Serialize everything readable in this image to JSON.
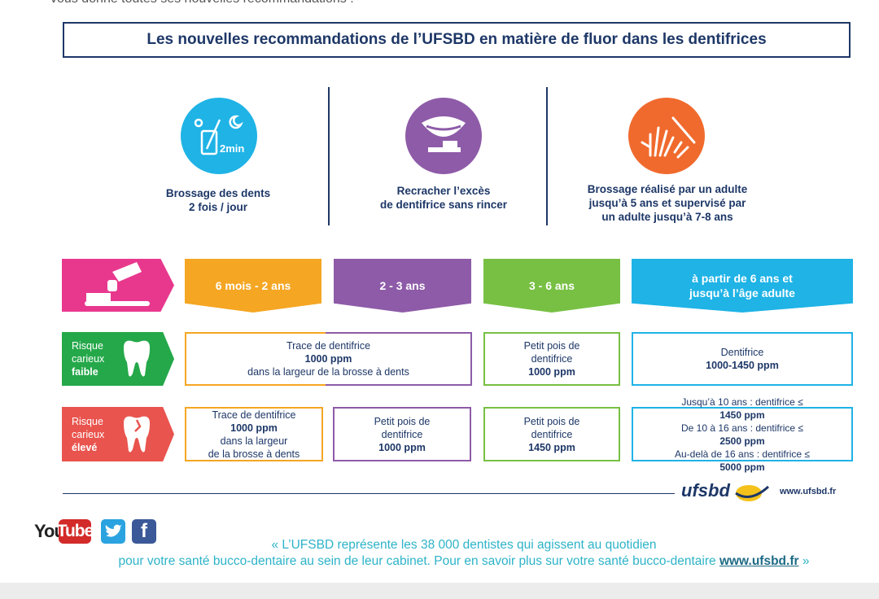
{
  "header": {
    "cut_text": "vous donne toutes ses nouvelles recommandations :",
    "title": "Les nouvelles recommandations de l’UFSBD en matière de fluor dans les dentifrices"
  },
  "tips": [
    {
      "icon": "toothbrush-cup-icon",
      "color": "#1fb3e6",
      "label_line1": "Brossage des dents",
      "label_line2": "2 fois / jour",
      "icon_text": "2min"
    },
    {
      "icon": "mouth-spit-icon",
      "color": "#8e5ba8",
      "label_line1": "Recracher l’excès",
      "label_line2": "de dentifrice sans rincer"
    },
    {
      "icon": "adult-child-hands-icon",
      "color": "#f06a2d",
      "label_line1": "Brossage réalisé par un adulte",
      "label_line2": "jusqu’à 5 ans et supervisé par",
      "label_line3": "un adulte jusqu’à 7-8 ans"
    }
  ],
  "age_bands": [
    {
      "label": "6 mois - 2 ans",
      "color": "#f5a623"
    },
    {
      "label": "2 - 3 ans",
      "color": "#8e5ba8"
    },
    {
      "label": "3 - 6 ans",
      "color": "#77c043"
    },
    {
      "label_line1": "à partir de 6 ans et",
      "label_line2": "jusqu’à l’âge adulte",
      "color": "#1fb3e6"
    }
  ],
  "risk_low": {
    "line1": "Risque",
    "line2": "carieux",
    "level": "faible",
    "color": "#25a84a",
    "cell_a": {
      "pre": "Trace de dentifrice ",
      "bold": "1000 ppm",
      "line2": "dans la largeur de la brosse à dents"
    },
    "cell_b": {
      "line1": "Petit pois de",
      "pre": "dentifrice ",
      "bold": "1000 ppm"
    },
    "cell_c": {
      "line1": "Dentifrice",
      "bold": "1000-1450 ppm"
    }
  },
  "risk_high": {
    "line1": "Risque",
    "line2": "carieux",
    "level": "élevé",
    "color": "#e9544e",
    "cell_a": {
      "line1": "Trace de dentifrice",
      "bold": "1000 ppm",
      "post": " dans la largeur",
      "line3": "de la brosse à dents"
    },
    "cell_b": {
      "line1": "Petit pois de",
      "pre": "dentifrice ",
      "bold": "1000 ppm"
    },
    "cell_c": {
      "line1": "Petit pois de",
      "pre": "dentifrice ",
      "bold": "1450 ppm"
    },
    "cell_d": {
      "r1_pre": "Jusqu’à 10 ans : dentifrice ≤ ",
      "r1_bold": "1450 ppm",
      "r2_pre": "De 10 à 16 ans : dentifrice ≤ ",
      "r2_bold": "2500 ppm",
      "r3_pre": "Au-delà de 16 ans : dentifrice ≤ ",
      "r3_bold": "5000 ppm"
    }
  },
  "footer": {
    "logo": "ufsbd",
    "website": "www.ufsbd.fr",
    "youtube_you": "You",
    "youtube_tube": "Tube",
    "twitter": "twitter-icon",
    "facebook": "facebook-icon",
    "quote_line1": "« L’UFSBD représente les 38 000 dentistes qui agissent au quotidien",
    "quote_line2_pre": "pour votre santé bucco-dentaire au sein de leur cabinet. Pour en savoir plus sur votre santé bucco-dentaire ",
    "quote_link": "www.ufsbd.fr",
    "quote_end": " »"
  }
}
